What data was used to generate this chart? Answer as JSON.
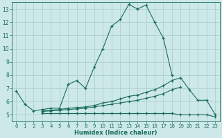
{
  "xlabel": "Humidex (Indice chaleur)",
  "background_color": "#cce8e8",
  "grid_color": "#aacccc",
  "line_color": "#1a6b5a",
  "xlim": [
    -0.5,
    23.5
  ],
  "ylim": [
    4.5,
    13.5
  ],
  "xticks": [
    0,
    1,
    2,
    3,
    4,
    5,
    6,
    7,
    8,
    9,
    10,
    11,
    12,
    13,
    14,
    15,
    16,
    17,
    18,
    19,
    20,
    21,
    22,
    23
  ],
  "yticks": [
    5,
    6,
    7,
    8,
    9,
    10,
    11,
    12,
    13
  ],
  "series1_x": [
    0,
    1,
    2,
    3,
    4,
    5,
    6,
    7,
    8,
    9,
    10,
    11,
    12,
    13,
    14,
    15,
    16,
    17,
    18
  ],
  "series1_y": [
    6.8,
    5.8,
    5.3,
    5.4,
    5.5,
    5.5,
    7.3,
    7.6,
    7.0,
    8.6,
    10.0,
    11.7,
    12.2,
    13.35,
    13.0,
    13.3,
    12.0,
    10.8,
    8.0
  ],
  "series2_x": [
    3,
    4,
    5,
    6,
    7,
    8,
    9,
    10,
    11,
    12,
    13,
    14,
    15,
    16,
    17,
    18,
    19,
    20,
    21,
    22,
    23
  ],
  "series2_y": [
    5.3,
    5.35,
    5.4,
    5.5,
    5.55,
    5.6,
    5.7,
    5.9,
    6.0,
    6.2,
    6.4,
    6.5,
    6.7,
    6.9,
    7.2,
    7.6,
    7.8,
    6.9,
    6.1,
    6.1,
    5.0
  ],
  "series3_x": [
    3,
    4,
    5,
    6,
    7,
    8,
    9,
    10,
    11,
    12,
    13,
    14,
    15,
    16,
    17,
    18,
    19
  ],
  "series3_y": [
    5.25,
    5.3,
    5.35,
    5.4,
    5.45,
    5.5,
    5.6,
    5.7,
    5.8,
    5.9,
    6.0,
    6.1,
    6.25,
    6.4,
    6.6,
    6.9,
    7.1
  ],
  "series4_x": [
    3,
    4,
    5,
    6,
    7,
    8,
    9,
    10,
    11,
    12,
    13,
    14,
    15,
    16,
    17,
    18,
    19,
    20,
    21,
    22,
    23
  ],
  "series4_y": [
    5.1,
    5.1,
    5.1,
    5.1,
    5.1,
    5.1,
    5.1,
    5.1,
    5.1,
    5.1,
    5.1,
    5.1,
    5.1,
    5.1,
    5.1,
    5.1,
    5.0,
    5.0,
    5.0,
    5.0,
    4.85
  ]
}
